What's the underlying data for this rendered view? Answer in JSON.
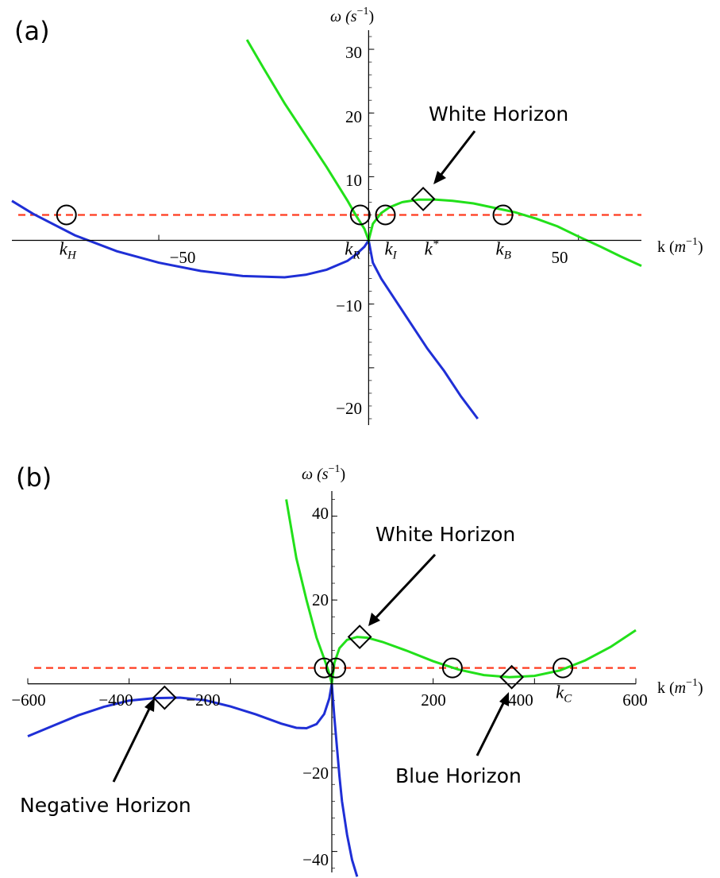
{
  "chart_data": [
    {
      "panel_label": "(a)",
      "type": "line",
      "xlabel_prefix": "k (",
      "xlabel_base": "m",
      "xlabel_exp": "−1",
      "xlabel_suffix": ")",
      "ylabel_prefix": "ω (",
      "ylabel_base": "s",
      "ylabel_exp": "−1",
      "ylabel_suffix": ")",
      "xlim": [
        -85,
        65
      ],
      "ylim": [
        -29,
        33
      ],
      "xticks": [
        -50,
        50
      ],
      "xtick_labels": [
        "−50",
        "50"
      ],
      "yticks": [
        -20,
        -10,
        10,
        20,
        30
      ],
      "ytick_labels": [
        "−20",
        "−10",
        "10",
        "20",
        "30"
      ],
      "series": [
        {
          "color": "#1f2fd6",
          "x": [
            -85,
            -80,
            -70,
            -60,
            -50,
            -40,
            -30,
            -20,
            -15,
            -10,
            -5,
            -3,
            -1,
            0,
            1,
            3,
            6,
            10,
            14,
            18,
            22,
            26
          ],
          "y": [
            6.2,
            4.2,
            0.8,
            -1.7,
            -3.5,
            -4.8,
            -5.6,
            -5.8,
            -5.4,
            -4.6,
            -3.2,
            -2.2,
            -1.0,
            0,
            -3.5,
            -6.0,
            -9.0,
            -13.0,
            -17.0,
            -20.5,
            -24.5,
            -28.0
          ]
        },
        {
          "color": "#22e01a",
          "x": [
            -29,
            -25,
            -20,
            -15,
            -10,
            -5,
            -3,
            -1,
            0,
            1,
            3,
            5,
            8,
            12,
            16,
            20,
            25,
            30,
            35,
            40,
            45,
            50,
            55,
            60,
            65
          ],
          "y": [
            31.5,
            27.0,
            21.5,
            16.5,
            11.5,
            6.2,
            3.9,
            1.8,
            0,
            2.6,
            4.3,
            5.2,
            6.0,
            6.4,
            6.4,
            6.2,
            5.8,
            5.1,
            4.4,
            3.4,
            2.2,
            0.6,
            -0.9,
            -2.5,
            -4.0
          ]
        }
      ],
      "dashed_level": 4.0,
      "dashed_color": "#ff3b1f",
      "circles": [
        [
          -72,
          4
        ],
        [
          -2,
          4
        ],
        [
          4,
          4
        ],
        [
          32,
          4
        ]
      ],
      "diamonds": [
        [
          13,
          6.5
        ]
      ],
      "k_labels": [
        {
          "x": -72,
          "base": "k",
          "sub": "H",
          "sup": ""
        },
        {
          "x": -4,
          "base": "k",
          "sub": "R",
          "sup": ""
        },
        {
          "x": 5.5,
          "base": "k",
          "sub": "I",
          "sup": ""
        },
        {
          "x": 15,
          "base": "k",
          "sub": "",
          "sup": "*"
        },
        {
          "x": 32,
          "base": "k",
          "sub": "B",
          "sup": ""
        }
      ],
      "annotations": [
        {
          "text": "White Horizon",
          "target": [
            13,
            6.5
          ]
        }
      ]
    },
    {
      "panel_label": "(b)",
      "type": "line",
      "xlabel_prefix": "k (",
      "xlabel_base": "m",
      "xlabel_exp": "−1",
      "xlabel_suffix": ")",
      "ylabel_prefix": "ω (",
      "ylabel_base": "s",
      "ylabel_exp": "−1",
      "ylabel_suffix": ")",
      "xlim": [
        -600,
        600
      ],
      "ylim": [
        -45,
        46
      ],
      "xticks": [
        -600,
        -400,
        -200,
        200,
        400,
        600
      ],
      "xtick_labels": [
        "−600",
        "−400",
        "−200",
        "200",
        "400",
        "600"
      ],
      "yticks": [
        -40,
        -20,
        20,
        40
      ],
      "ytick_labels": [
        "−40",
        "−20",
        "20",
        "40"
      ],
      "series": [
        {
          "color": "#1f2fd6",
          "x": [
            -600,
            -550,
            -500,
            -450,
            -400,
            -350,
            -300,
            -250,
            -200,
            -150,
            -100,
            -70,
            -50,
            -30,
            -15,
            -5,
            0,
            5,
            10,
            15,
            20,
            30,
            40,
            50
          ],
          "y": [
            -12.5,
            -10.0,
            -7.5,
            -5.5,
            -4.0,
            -3.4,
            -3.3,
            -3.9,
            -5.4,
            -7.3,
            -9.5,
            -10.5,
            -10.6,
            -9.6,
            -7.2,
            -3.5,
            0,
            -8,
            -15,
            -22,
            -28,
            -36,
            -42,
            -46
          ]
        },
        {
          "color": "#22e01a",
          "x": [
            -90,
            -70,
            -50,
            -30,
            -15,
            -5,
            0,
            5,
            15,
            30,
            50,
            70,
            100,
            150,
            200,
            250,
            300,
            350,
            400,
            450,
            500,
            550,
            600
          ],
          "y": [
            44,
            30,
            20,
            11,
            6,
            2.5,
            0,
            5,
            8.5,
            10.5,
            11.2,
            11.0,
            10.0,
            7.8,
            5.4,
            3.4,
            2.1,
            1.6,
            1.9,
            3.2,
            5.6,
            8.8,
            12.8
          ]
        }
      ],
      "dashed_level": 3.8,
      "dashed_color": "#ff3b1f",
      "circles": [
        [
          -15,
          3.8
        ],
        [
          8,
          3.8
        ],
        [
          238,
          3.8
        ],
        [
          456,
          3.8
        ]
      ],
      "diamonds": [
        [
          -330,
          -3.3
        ],
        [
          55,
          11.2
        ],
        [
          355,
          1.6
        ]
      ],
      "k_labels": [
        {
          "x": 456,
          "base": "k",
          "sub": "C",
          "sup": ""
        }
      ],
      "annotations": [
        {
          "text": "White Horizon",
          "target": [
            55,
            11.2
          ]
        },
        {
          "text": "Negative Horizon",
          "target": [
            -330,
            -3.3
          ]
        },
        {
          "text": "Blue Horizon",
          "target": [
            355,
            1.6
          ]
        }
      ]
    }
  ]
}
